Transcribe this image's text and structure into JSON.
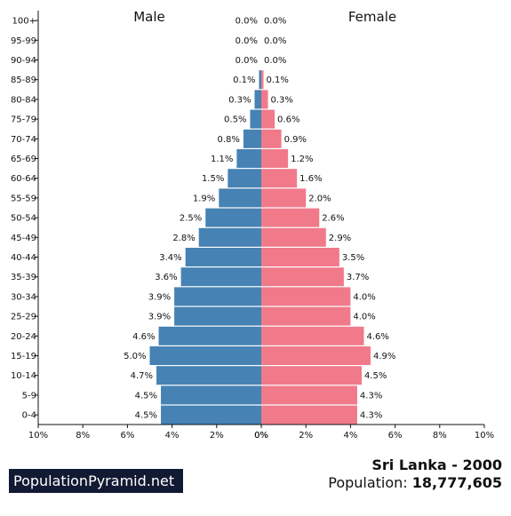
{
  "chart_data": {
    "type": "bar",
    "orientation": "horizontal-population-pyramid",
    "left_label": "Male",
    "right_label": "Female",
    "categories": [
      "100+",
      "95-99",
      "90-94",
      "85-89",
      "80-84",
      "75-79",
      "70-74",
      "65-69",
      "60-64",
      "55-59",
      "50-54",
      "45-49",
      "40-44",
      "35-39",
      "30-34",
      "25-29",
      "20-24",
      "15-19",
      "10-14",
      "5-9",
      "0-4"
    ],
    "series": [
      {
        "name": "Male",
        "color": "#4682b4",
        "values": [
          0.0,
          0.0,
          0.0,
          0.1,
          0.3,
          0.5,
          0.8,
          1.1,
          1.5,
          1.9,
          2.5,
          2.8,
          3.4,
          3.6,
          3.9,
          3.9,
          4.6,
          5.0,
          4.7,
          4.5,
          4.5
        ],
        "labels": [
          "0.0%",
          "0.0%",
          "0.0%",
          "0.1%",
          "0.3%",
          "0.5%",
          "0.8%",
          "1.1%",
          "1.5%",
          "1.9%",
          "2.5%",
          "2.8%",
          "3.4%",
          "3.6%",
          "3.9%",
          "3.9%",
          "4.6%",
          "5.0%",
          "4.7%",
          "4.5%",
          "4.5%"
        ]
      },
      {
        "name": "Female",
        "color": "#f07a8a",
        "values": [
          0.0,
          0.0,
          0.0,
          0.1,
          0.3,
          0.6,
          0.9,
          1.2,
          1.6,
          2.0,
          2.6,
          2.9,
          3.5,
          3.7,
          4.0,
          4.0,
          4.6,
          4.9,
          4.5,
          4.3,
          4.3
        ],
        "labels": [
          "0.0%",
          "0.0%",
          "0.0%",
          "0.1%",
          "0.3%",
          "0.6%",
          "0.9%",
          "1.2%",
          "1.6%",
          "2.0%",
          "2.6%",
          "2.9%",
          "3.5%",
          "3.7%",
          "4.0%",
          "4.0%",
          "4.6%",
          "4.9%",
          "4.5%",
          "4.3%",
          "4.3%"
        ]
      }
    ],
    "male_ticks": [
      "10%",
      "8%",
      "6%",
      "4%",
      "2%",
      "0%"
    ],
    "female_ticks": [
      "0%",
      "2%",
      "4%",
      "6%",
      "8%",
      "10%"
    ],
    "xlim": [
      0,
      10
    ],
    "grid": false
  },
  "footer": {
    "brand": "PopulationPyramid.net",
    "country_year": "Sri Lanka - 2000",
    "population_label": "Population: ",
    "population_value": "18,777,605"
  }
}
